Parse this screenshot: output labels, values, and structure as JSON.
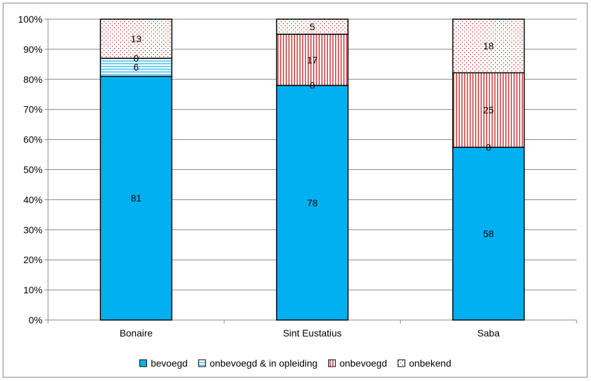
{
  "chart_data": {
    "type": "bar",
    "stacked": true,
    "percent": true,
    "categories": [
      "Bonaire",
      "Sint Eustatius",
      "Saba"
    ],
    "series": [
      {
        "name": "bevoegd",
        "values": [
          81,
          78,
          58
        ],
        "color": "#00b0f0",
        "pattern": "solid"
      },
      {
        "name": "onbevoegd & in opleiding",
        "values": [
          6,
          0,
          0
        ],
        "color": "#00b0f0",
        "pattern": "horizontal-lines"
      },
      {
        "name": "onbevoegd",
        "values": [
          0,
          17,
          25
        ],
        "color": "#c00000",
        "pattern": "vertical-lines"
      },
      {
        "name": "onbekend",
        "values": [
          13,
          5,
          18
        ],
        "color": "#c00000",
        "pattern": "dots"
      }
    ],
    "yticks": [
      "0%",
      "10%",
      "20%",
      "30%",
      "40%",
      "50%",
      "60%",
      "70%",
      "80%",
      "90%",
      "100%"
    ],
    "ylim": [
      0,
      100
    ],
    "grid": true,
    "legend_position": "bottom"
  }
}
